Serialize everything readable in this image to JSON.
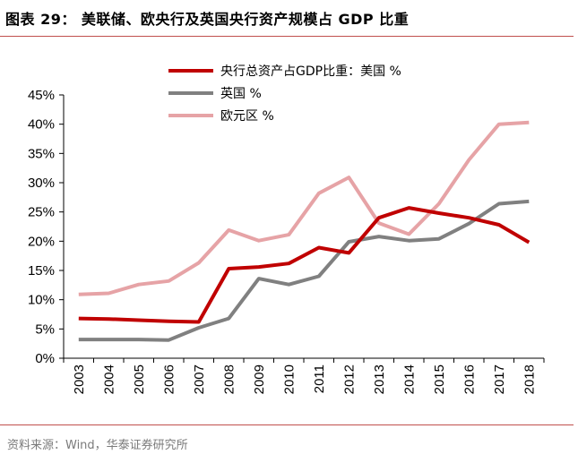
{
  "figure_title": "图表 29：  美联储、欧央行及英国央行资产规模占 GDP 比重",
  "source_note": "资料来源：Wind，华泰证券研究所",
  "chart_data": {
    "type": "line",
    "title": "",
    "xlabel": "",
    "ylabel": "",
    "x": [
      "2003",
      "2004",
      "2005",
      "2006",
      "2007",
      "2008",
      "2009",
      "2010",
      "2011",
      "2012",
      "2013",
      "2014",
      "2015",
      "2016",
      "2017",
      "2018"
    ],
    "ylim": [
      0,
      45
    ],
    "yticks": [
      "0%",
      "5%",
      "10%",
      "15%",
      "20%",
      "25%",
      "30%",
      "35%",
      "40%",
      "45%"
    ],
    "legend_position": "top-center",
    "grid": false,
    "series": [
      {
        "name": "央行总资产占GDP比重：美国 %",
        "color": "#c00000",
        "values": [
          6.8,
          6.7,
          6.5,
          6.3,
          6.2,
          15.3,
          15.6,
          16.2,
          18.9,
          18.0,
          24.0,
          25.7,
          24.8,
          24.0,
          22.8,
          19.8
        ]
      },
      {
        "name": "英国 %",
        "color": "#808080",
        "values": [
          3.2,
          3.2,
          3.2,
          3.1,
          5.2,
          6.8,
          13.6,
          12.6,
          14.0,
          19.9,
          20.8,
          20.1,
          20.4,
          23.0,
          26.4,
          26.8
        ]
      },
      {
        "name": "欧元区 %",
        "color": "#e6a3a6",
        "values": [
          10.9,
          11.1,
          12.6,
          13.2,
          16.3,
          21.9,
          20.1,
          21.1,
          28.2,
          30.9,
          23.1,
          21.2,
          26.4,
          33.9,
          40.0,
          40.3
        ]
      }
    ]
  }
}
